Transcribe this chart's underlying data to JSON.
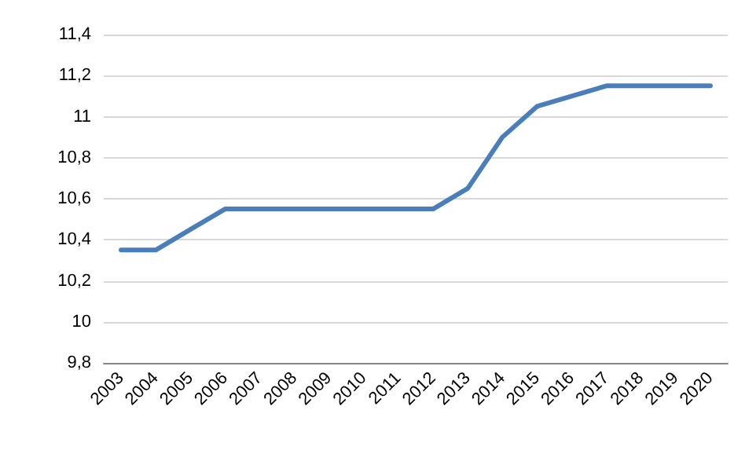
{
  "chart_data": {
    "type": "line",
    "categories": [
      "2003",
      "2004",
      "2005",
      "2006",
      "2007",
      "2008",
      "2009",
      "2010",
      "2011",
      "2012",
      "2013",
      "2014",
      "2015",
      "2016",
      "2017",
      "2018",
      "2019",
      "2020"
    ],
    "series": [
      {
        "color": "#4a7ebb",
        "values": [
          10.35,
          10.35,
          10.45,
          10.55,
          10.55,
          10.55,
          10.55,
          10.55,
          10.55,
          10.55,
          10.65,
          10.9,
          11.05,
          11.1,
          11.15,
          11.15,
          11.15,
          11.15
        ]
      }
    ],
    "ylim": [
      9.8,
      11.4
    ],
    "yticks": [
      {
        "value": 9.8,
        "label": "9,8"
      },
      {
        "value": 10,
        "label": "10"
      },
      {
        "value": 10.2,
        "label": "10,2"
      },
      {
        "value": 10.4,
        "label": "10,4"
      },
      {
        "value": 10.6,
        "label": "10,6"
      },
      {
        "value": 10.8,
        "label": "10,8"
      },
      {
        "value": 11,
        "label": "11"
      },
      {
        "value": 11.2,
        "label": "11,2"
      },
      {
        "value": 11.4,
        "label": "11,4"
      }
    ],
    "grid": "y",
    "marker": "none",
    "line_style": "solid"
  }
}
